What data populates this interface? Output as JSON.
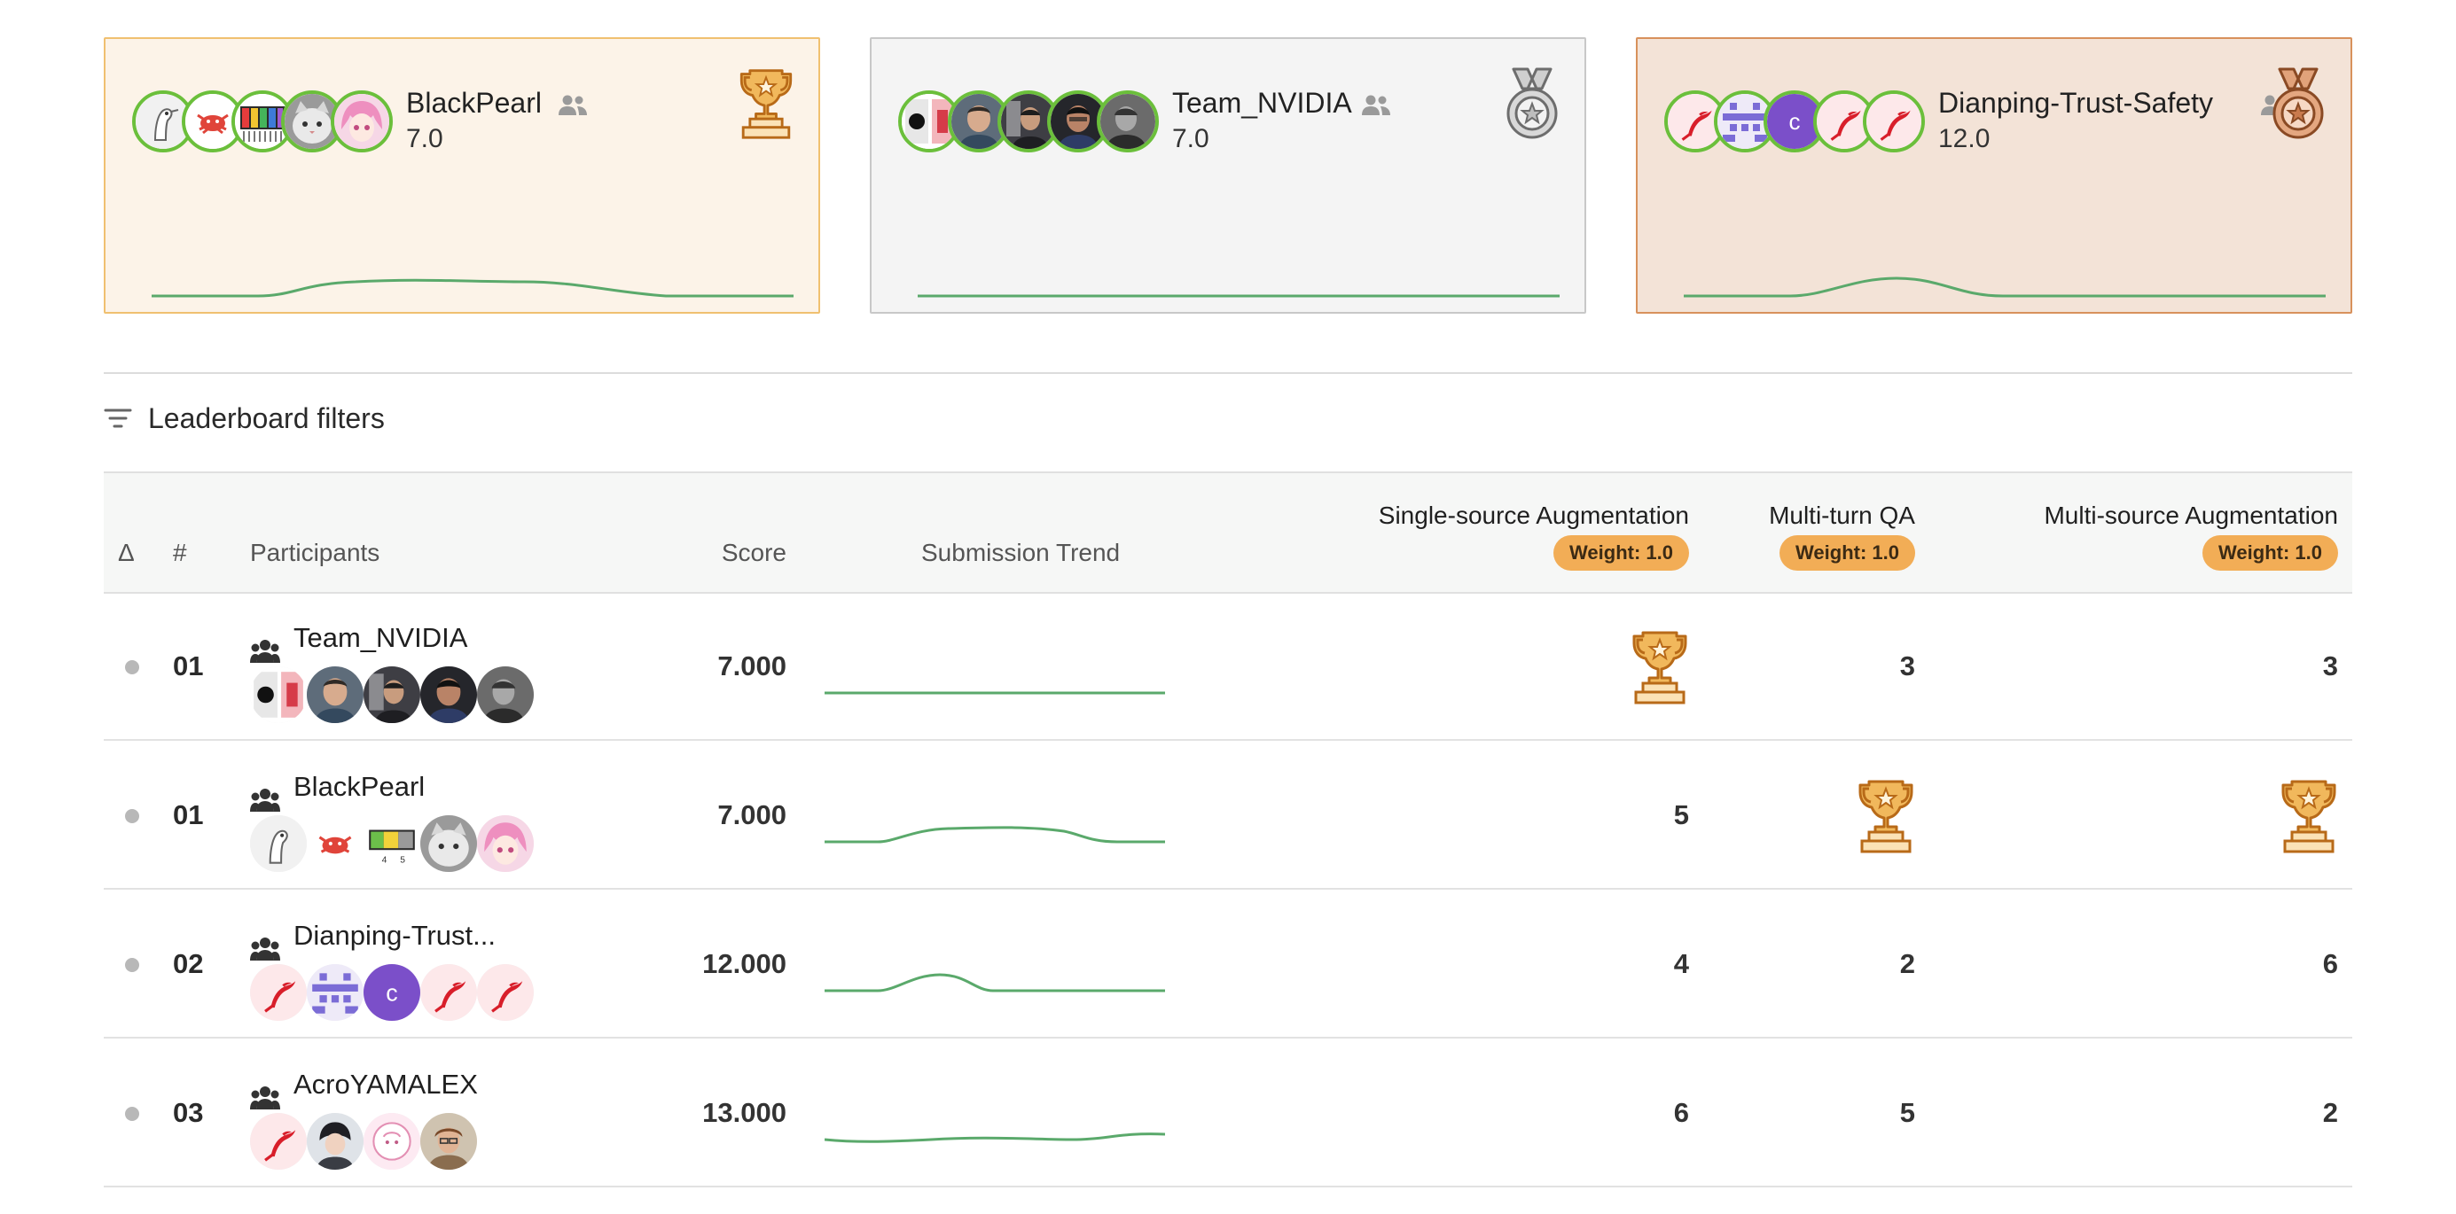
{
  "podium": [
    {
      "place": "gold",
      "name": "BlackPearl",
      "score": "7.0",
      "medal": "trophy-icon"
    },
    {
      "place": "silver",
      "name": "Team_NVIDIA",
      "score": "7.0",
      "medal": "silver-medal-icon"
    },
    {
      "place": "bronze",
      "name": "Dianping-Trust-Safety",
      "score": "12.0",
      "medal": "bronze-medal-icon"
    }
  ],
  "filters": {
    "label": "Leaderboard filters"
  },
  "table": {
    "headers": {
      "delta": "Δ",
      "rank": "#",
      "participants": "Participants",
      "score": "Score",
      "trend": "Submission Trend",
      "task1": "Single-source Augmentation",
      "task2": "Multi-turn QA",
      "task3": "Multi-source Augmentation",
      "weight1": "Weight: 1.0",
      "weight2": "Weight: 1.0",
      "weight3": "Weight: 1.0"
    },
    "rows": [
      {
        "rank": "01",
        "name": "Team_NVIDIA",
        "score": "7.000",
        "task1": "trophy",
        "task2": "3",
        "task3": "3"
      },
      {
        "rank": "01",
        "name": "BlackPearl",
        "score": "7.000",
        "task1": "5",
        "task2": "trophy",
        "task3": "trophy"
      },
      {
        "rank": "02",
        "name": "Dianping-Trust...",
        "score": "12.000",
        "task1": "4",
        "task2": "2",
        "task3": "6"
      },
      {
        "rank": "03",
        "name": "AcroYAMALEX",
        "score": "13.000",
        "task1": "6",
        "task2": "5",
        "task3": "2"
      }
    ]
  },
  "colors": {
    "accent_green": "#5aa96b",
    "avatar_ring": "#6bbf3b",
    "weight_badge": "#f2ad56",
    "trophy": "#e8972e",
    "gold_bg": "#fcf3e8",
    "silver_bg": "#f4f4f4",
    "bronze_bg": "#f3e3d7"
  }
}
